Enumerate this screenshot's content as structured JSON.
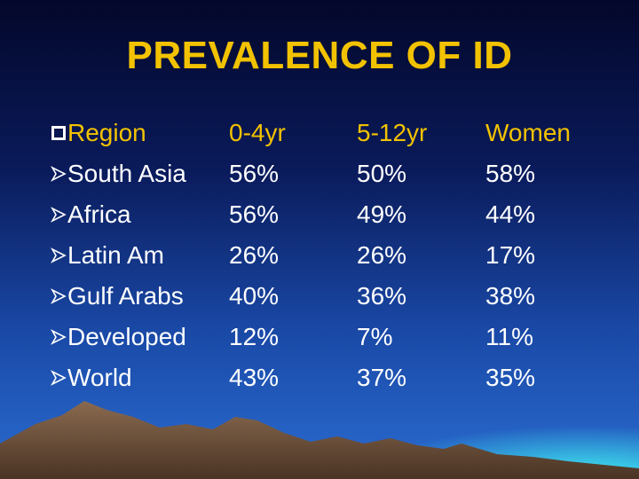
{
  "title": "PREVALENCE OF ID",
  "table": {
    "header": [
      "Region",
      "0-4yr",
      "5-12yr",
      "Women"
    ],
    "rows": [
      [
        "South Asia",
        "56%",
        "50%",
        "58%"
      ],
      [
        "Africa",
        "56%",
        "49%",
        "44%"
      ],
      [
        "Latin Am",
        "26%",
        "26%",
        "17%"
      ],
      [
        "Gulf Arabs",
        "40%",
        "36%",
        "38%"
      ],
      [
        "Developed",
        "12%",
        "7%",
        "11%"
      ],
      [
        "World",
        "43%",
        "37%",
        "35%"
      ]
    ]
  }
}
